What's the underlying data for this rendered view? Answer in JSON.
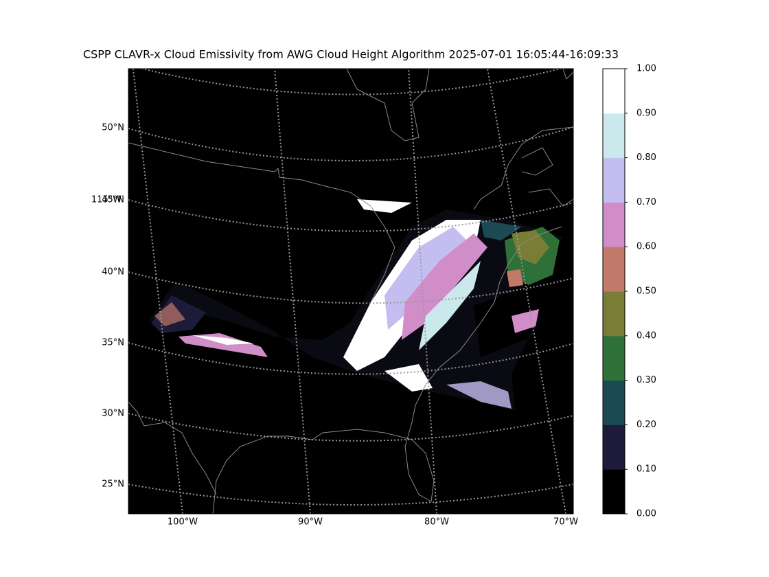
{
  "title": "CSPP CLAVR-x Cloud Emissivity from AWG Cloud Height Algorithm 2025-07-01 16:05:44-16:09:33",
  "map": {
    "lat_labels": [
      "50°N",
      "45°N",
      "40°N",
      "35°N",
      "30°N",
      "25°N"
    ],
    "lon_labels": [
      "100°W",
      "90°W",
      "80°W",
      "70°W"
    ],
    "extra_lon_label": "115°W"
  },
  "colorbar": {
    "ticks": [
      {
        "value": 0,
        "label": "0.00"
      },
      {
        "value": 0.1,
        "label": "0.10"
      },
      {
        "value": 0.2,
        "label": "0.20"
      },
      {
        "value": 0.3,
        "label": "0.30"
      },
      {
        "value": 0.4,
        "label": "0.40"
      },
      {
        "value": 0.5,
        "label": "0.50"
      },
      {
        "value": 0.6,
        "label": "0.60"
      },
      {
        "value": 0.7,
        "label": "0.70"
      },
      {
        "value": 0.8,
        "label": "0.80"
      },
      {
        "value": 0.9,
        "label": "0.90"
      },
      {
        "value": 1,
        "label": "1.00"
      }
    ],
    "colors": [
      "#000000",
      "#1e1a3a",
      "#1b4a52",
      "#2e7038",
      "#7a7d35",
      "#c17a6a",
      "#d08dc8",
      "#c4bdf0",
      "#cbe9ec",
      "#ffffff"
    ]
  }
}
